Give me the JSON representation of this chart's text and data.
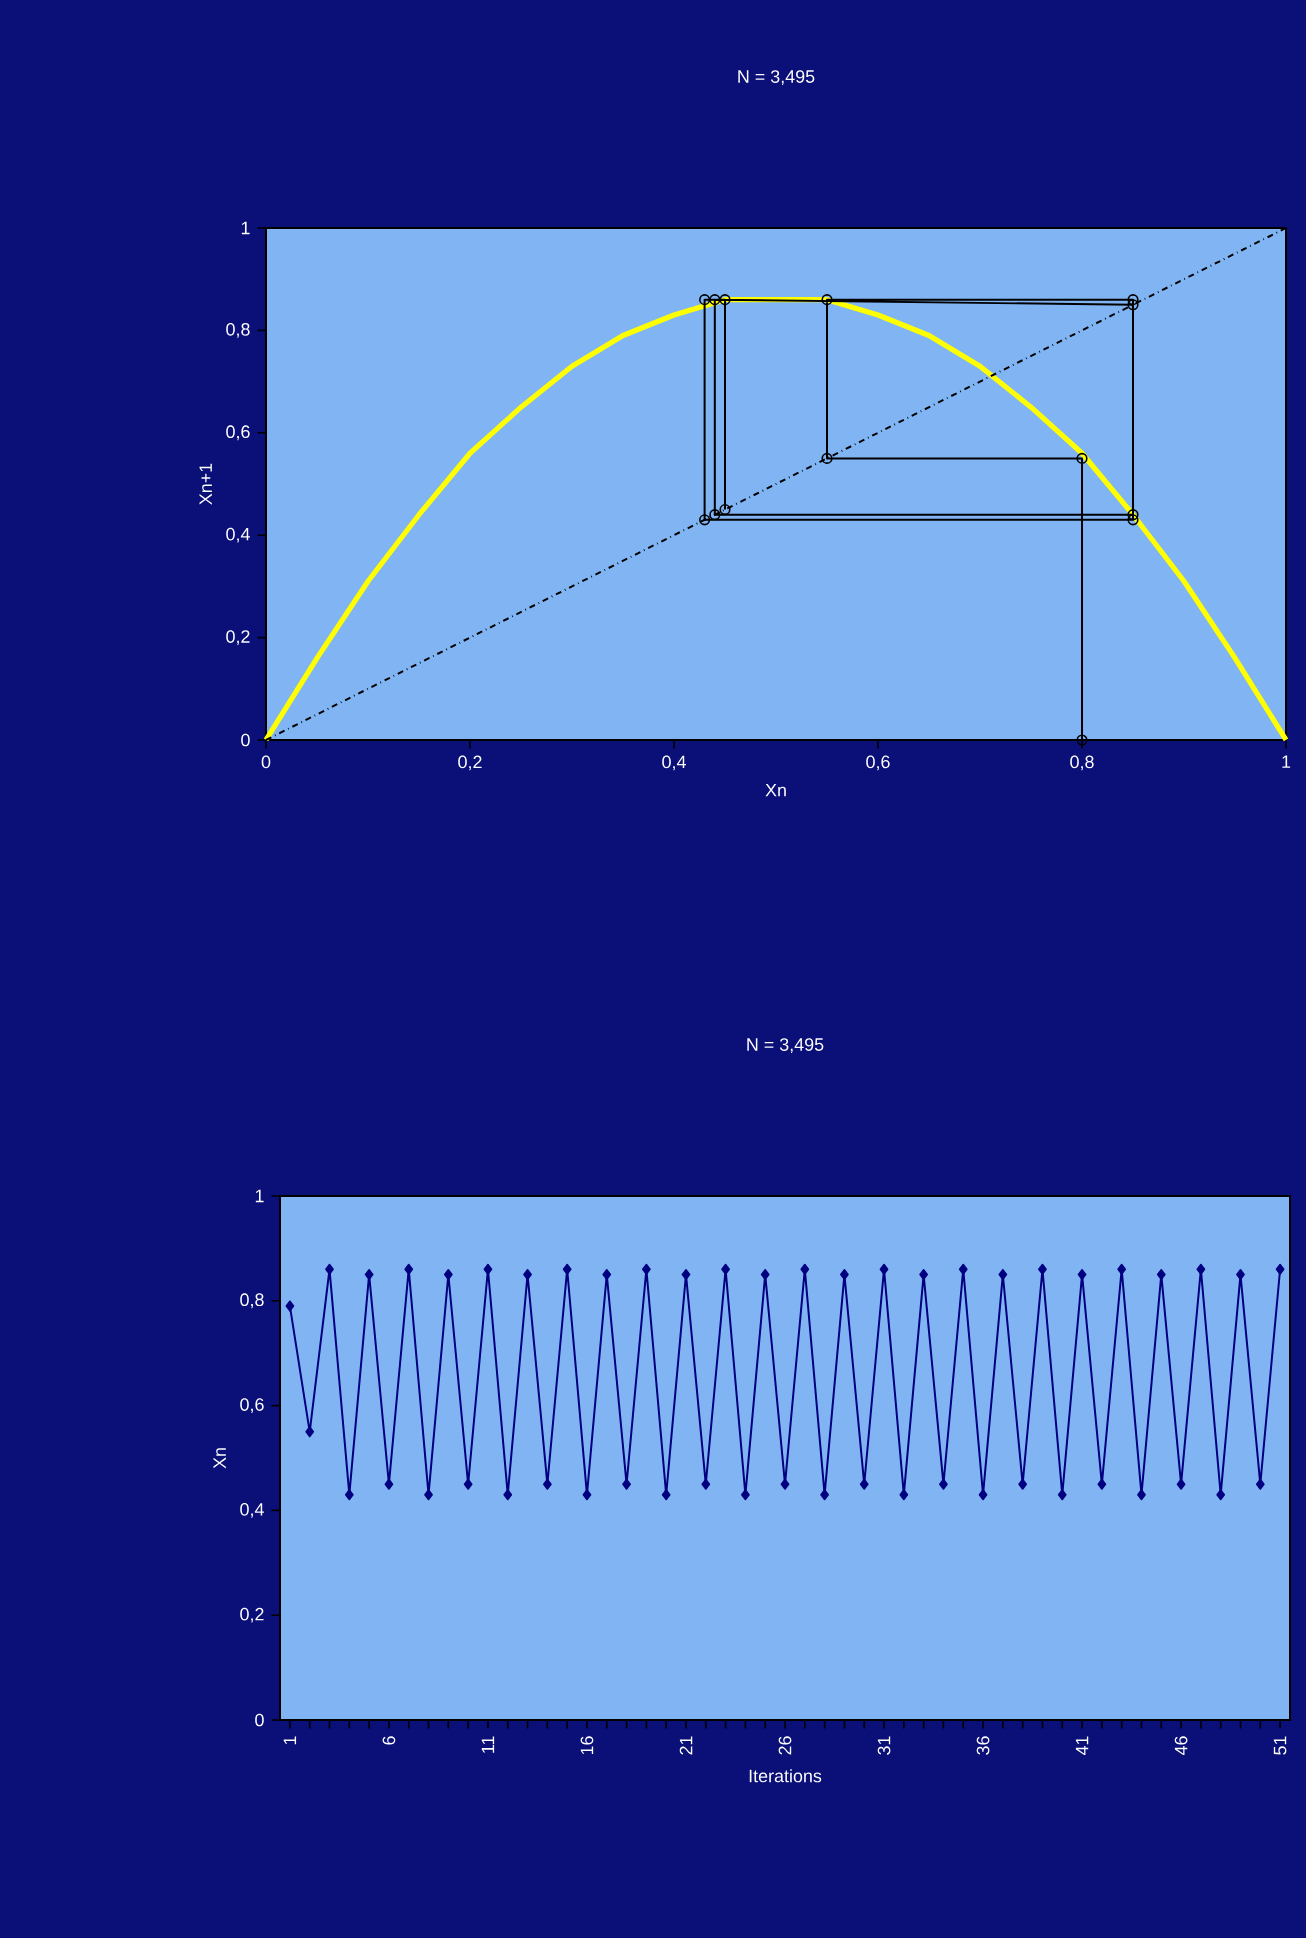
{
  "chart_data": [
    {
      "type": "line",
      "title": "N = 3,495",
      "xlabel": "Xn",
      "ylabel": "Xn+1",
      "xlim": [
        0,
        1
      ],
      "ylim": [
        0,
        1
      ],
      "xticks": [
        {
          "value": 0,
          "label": "0"
        },
        {
          "value": 0.2,
          "label": "0,2"
        },
        {
          "value": 0.4,
          "label": "0,4"
        },
        {
          "value": 0.6,
          "label": "0,6"
        },
        {
          "value": 0.8,
          "label": "0,8"
        },
        {
          "value": 1,
          "label": "1"
        }
      ],
      "yticks": [
        {
          "value": 0,
          "label": "0"
        },
        {
          "value": 0.2,
          "label": "0,2"
        },
        {
          "value": 0.4,
          "label": "0,4"
        },
        {
          "value": 0.6,
          "label": "0,6"
        },
        {
          "value": 0.8,
          "label": "0,8"
        },
        {
          "value": 1,
          "label": "1"
        }
      ],
      "series": [
        {
          "color": "#ffff00",
          "marker": "none",
          "line_style": "solid",
          "x": [
            0,
            0.05,
            0.1,
            0.15,
            0.2,
            0.25,
            0.3,
            0.35,
            0.4,
            0.45,
            0.5,
            0.55,
            0.6,
            0.65,
            0.7,
            0.75,
            0.8,
            0.85,
            0.9,
            0.95,
            1
          ],
          "values": [
            0,
            0.16,
            0.31,
            0.44,
            0.56,
            0.65,
            0.73,
            0.79,
            0.83,
            0.86,
            0.86,
            0.86,
            0.83,
            0.79,
            0.73,
            0.65,
            0.56,
            0.44,
            0.31,
            0.16,
            0
          ]
        },
        {
          "color": "#000000",
          "marker": "none",
          "line_style": "dashed",
          "x": [
            0,
            1
          ],
          "values": [
            0,
            1
          ]
        },
        {
          "color": "#000000",
          "marker": "circle",
          "line_style": "solid",
          "x": [
            0.8,
            0.8,
            0.55,
            0.55,
            0.85,
            0.85,
            0.44,
            0.44,
            0.85,
            0.85,
            0.43,
            0.43,
            0.45,
            0.45
          ],
          "values": [
            0,
            0.55,
            0.55,
            0.86,
            0.86,
            0.44,
            0.44,
            0.86,
            0.85,
            0.43,
            0.43,
            0.86,
            0.86,
            0.45
          ]
        }
      ]
    },
    {
      "type": "line",
      "title": "N = 3,495",
      "xlabel": "Iterations",
      "ylabel": "Xn",
      "ylim": [
        0,
        1
      ],
      "yticks": [
        {
          "value": 0,
          "label": "0"
        },
        {
          "value": 0.2,
          "label": "0,2"
        },
        {
          "value": 0.4,
          "label": "0,4"
        },
        {
          "value": 0.6,
          "label": "0,6"
        },
        {
          "value": 0.8,
          "label": "0,8"
        },
        {
          "value": 1,
          "label": "1"
        }
      ],
      "categories": [
        "1",
        null,
        null,
        null,
        null,
        "6",
        null,
        null,
        null,
        null,
        "11",
        null,
        null,
        null,
        null,
        "16",
        null,
        null,
        null,
        null,
        "21",
        null,
        null,
        null,
        null,
        "26",
        null,
        null,
        null,
        null,
        "31",
        null,
        null,
        null,
        null,
        "36",
        null,
        null,
        null,
        null,
        "41",
        null,
        null,
        null,
        null,
        "46",
        null,
        null,
        null,
        null,
        "51"
      ],
      "series": [
        {
          "color": "#000080",
          "marker": "diamond",
          "line_style": "solid",
          "values": [
            0.79,
            0.55,
            0.86,
            0.43,
            0.85,
            0.45,
            0.86,
            0.43,
            0.85,
            0.45,
            0.86,
            0.43,
            0.85,
            0.45,
            0.86,
            0.43,
            0.85,
            0.45,
            0.86,
            0.43,
            0.85,
            0.45,
            0.86,
            0.43,
            0.85,
            0.45,
            0.86,
            0.43,
            0.85,
            0.45,
            0.86,
            0.43,
            0.85,
            0.45,
            0.86,
            0.43,
            0.85,
            0.45,
            0.86,
            0.43,
            0.85,
            0.45,
            0.86,
            0.43,
            0.85,
            0.45,
            0.86,
            0.43,
            0.85,
            0.45,
            0.86
          ]
        }
      ]
    }
  ]
}
